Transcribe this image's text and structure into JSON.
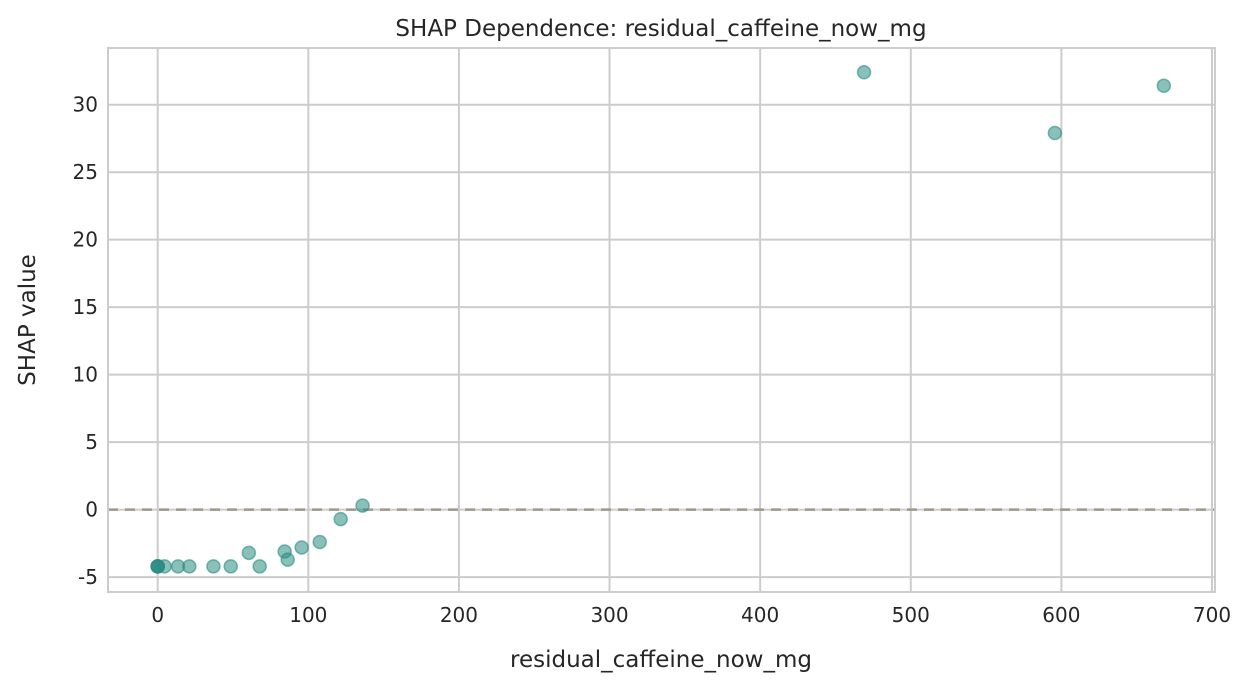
{
  "chart_data": {
    "type": "scatter",
    "title": "SHAP Dependence: residual_caffeine_now_mg",
    "xlabel": "residual_caffeine_now_mg",
    "ylabel": "SHAP value",
    "xlim": [
      -33,
      702
    ],
    "ylim": [
      -6.1,
      34.2
    ],
    "xticks": [
      0,
      100,
      200,
      300,
      400,
      500,
      600,
      700
    ],
    "yticks": [
      -5,
      0,
      5,
      10,
      15,
      20,
      25,
      30
    ],
    "grid": true,
    "reference_line": {
      "y": 0,
      "style": "dashed",
      "color": "#9e978a"
    },
    "point_color": "#2a8c82",
    "points": [
      {
        "x": 0,
        "y": -4.2
      },
      {
        "x": 0,
        "y": -4.2
      },
      {
        "x": 0,
        "y": -4.2
      },
      {
        "x": 0,
        "y": -4.2
      },
      {
        "x": 4.6,
        "y": -4.2
      },
      {
        "x": 13.5,
        "y": -4.2
      },
      {
        "x": 21,
        "y": -4.2
      },
      {
        "x": 37,
        "y": -4.2
      },
      {
        "x": 48.5,
        "y": -4.2
      },
      {
        "x": 60.5,
        "y": -3.2
      },
      {
        "x": 67.7,
        "y": -4.2
      },
      {
        "x": 84.3,
        "y": -3.1
      },
      {
        "x": 86.3,
        "y": -3.7
      },
      {
        "x": 95.6,
        "y": -2.8
      },
      {
        "x": 107.6,
        "y": -2.4
      },
      {
        "x": 121.5,
        "y": -0.7
      },
      {
        "x": 136,
        "y": 0.3
      },
      {
        "x": 469,
        "y": 32.4
      },
      {
        "x": 595.7,
        "y": 27.9
      },
      {
        "x": 668,
        "y": 31.4
      }
    ]
  }
}
